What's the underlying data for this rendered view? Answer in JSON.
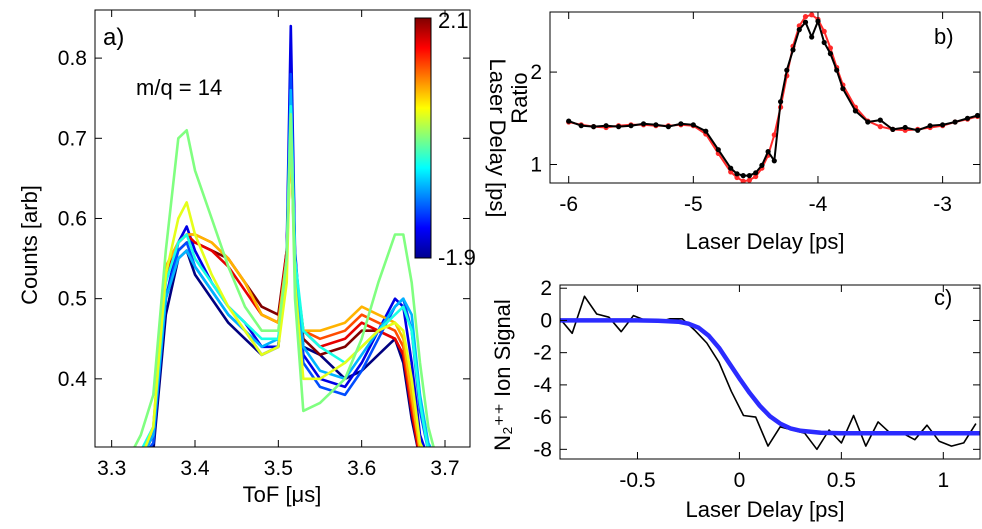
{
  "chart_data": [
    {
      "type": "line",
      "panel_label": "a)",
      "annotation": "m/q = 14",
      "xlabel": "ToF [μs]",
      "ylabel": "Counts [arb]",
      "xlim": [
        3.28,
        3.73
      ],
      "ylim": [
        0.315,
        0.86
      ],
      "xticks": [
        3.3,
        3.4,
        3.5,
        3.6,
        3.7
      ],
      "yticks": [
        0.4,
        0.5,
        0.6,
        0.7,
        0.8
      ],
      "xtick_labels": [
        "3.3",
        "3.4",
        "3.5",
        "3.6",
        "3.7"
      ],
      "ytick_labels": [
        "0.4",
        "0.5",
        "0.6",
        "0.7",
        "0.8"
      ],
      "grid": false,
      "colorbar": {
        "label": "Laser Delay [ps]",
        "min": -1.9,
        "max": 2.1,
        "min_label": "-1.9",
        "max_label": "2.1",
        "colormap": "jet"
      },
      "x": [
        3.32,
        3.335,
        3.35,
        3.365,
        3.38,
        3.39,
        3.4,
        3.42,
        3.44,
        3.46,
        3.48,
        3.5,
        3.51,
        3.515,
        3.52,
        3.53,
        3.55,
        3.58,
        3.6,
        3.62,
        3.64,
        3.65,
        3.66,
        3.67,
        3.68,
        3.69
      ],
      "series": [
        {
          "delay": -1.9,
          "values": [
            0.3,
            0.3,
            0.31,
            0.48,
            0.55,
            0.56,
            0.53,
            0.5,
            0.47,
            0.45,
            0.43,
            0.44,
            0.55,
            0.8,
            0.55,
            0.44,
            0.43,
            0.4,
            0.41,
            0.43,
            0.45,
            0.42,
            0.35,
            0.3,
            0.3,
            0.3
          ]
        },
        {
          "delay": -1.5,
          "values": [
            0.3,
            0.3,
            0.33,
            0.5,
            0.57,
            0.59,
            0.56,
            0.52,
            0.49,
            0.47,
            0.44,
            0.44,
            0.56,
            0.84,
            0.56,
            0.43,
            0.4,
            0.39,
            0.42,
            0.46,
            0.5,
            0.49,
            0.42,
            0.33,
            0.3,
            0.3
          ]
        },
        {
          "delay": -1.1,
          "values": [
            0.3,
            0.3,
            0.32,
            0.5,
            0.56,
            0.57,
            0.54,
            0.51,
            0.48,
            0.46,
            0.43,
            0.44,
            0.55,
            0.78,
            0.55,
            0.42,
            0.39,
            0.38,
            0.41,
            0.45,
            0.49,
            0.5,
            0.46,
            0.36,
            0.31,
            0.3
          ]
        },
        {
          "delay": -0.7,
          "values": [
            0.3,
            0.3,
            0.33,
            0.5,
            0.55,
            0.56,
            0.54,
            0.51,
            0.48,
            0.46,
            0.44,
            0.45,
            0.55,
            0.76,
            0.55,
            0.44,
            0.41,
            0.4,
            0.43,
            0.46,
            0.49,
            0.5,
            0.48,
            0.38,
            0.32,
            0.3
          ]
        },
        {
          "delay": -0.3,
          "values": [
            0.3,
            0.31,
            0.34,
            0.52,
            0.57,
            0.58,
            0.55,
            0.52,
            0.49,
            0.47,
            0.45,
            0.45,
            0.55,
            0.74,
            0.55,
            0.46,
            0.44,
            0.42,
            0.44,
            0.46,
            0.48,
            0.49,
            0.46,
            0.37,
            0.31,
            0.3
          ]
        },
        {
          "delay": 0.1,
          "values": [
            0.3,
            0.33,
            0.38,
            0.56,
            0.7,
            0.71,
            0.66,
            0.6,
            0.54,
            0.49,
            0.46,
            0.46,
            0.55,
            0.73,
            0.5,
            0.36,
            0.37,
            0.4,
            0.45,
            0.52,
            0.58,
            0.58,
            0.52,
            0.42,
            0.34,
            0.3
          ]
        },
        {
          "delay": 0.5,
          "values": [
            0.3,
            0.3,
            0.34,
            0.53,
            0.6,
            0.62,
            0.58,
            0.53,
            0.49,
            0.46,
            0.43,
            0.44,
            0.52,
            0.72,
            0.52,
            0.4,
            0.4,
            0.42,
            0.44,
            0.46,
            0.47,
            0.46,
            0.4,
            0.32,
            0.3,
            0.3
          ]
        },
        {
          "delay": 0.9,
          "values": [
            0.3,
            0.3,
            0.34,
            0.54,
            0.57,
            0.58,
            0.58,
            0.57,
            0.55,
            0.52,
            0.48,
            0.47,
            0.55,
            0.7,
            0.54,
            0.46,
            0.46,
            0.47,
            0.49,
            0.48,
            0.47,
            0.45,
            0.38,
            0.31,
            0.3,
            0.3
          ]
        },
        {
          "delay": 1.3,
          "values": [
            0.3,
            0.3,
            0.33,
            0.54,
            0.57,
            0.58,
            0.58,
            0.57,
            0.55,
            0.52,
            0.48,
            0.47,
            0.55,
            0.7,
            0.54,
            0.46,
            0.45,
            0.46,
            0.48,
            0.47,
            0.46,
            0.44,
            0.37,
            0.31,
            0.3,
            0.3
          ]
        },
        {
          "delay": 1.7,
          "values": [
            0.3,
            0.3,
            0.33,
            0.53,
            0.57,
            0.58,
            0.57,
            0.56,
            0.54,
            0.51,
            0.48,
            0.47,
            0.56,
            0.71,
            0.54,
            0.46,
            0.44,
            0.45,
            0.47,
            0.46,
            0.45,
            0.43,
            0.36,
            0.3,
            0.3,
            0.3
          ]
        },
        {
          "delay": 2.1,
          "values": [
            0.3,
            0.3,
            0.33,
            0.53,
            0.56,
            0.57,
            0.57,
            0.56,
            0.55,
            0.52,
            0.49,
            0.48,
            0.56,
            0.72,
            0.55,
            0.45,
            0.43,
            0.44,
            0.46,
            0.46,
            0.45,
            0.43,
            0.36,
            0.3,
            0.3,
            0.3
          ]
        }
      ]
    },
    {
      "type": "line",
      "panel_label": "b)",
      "xlabel": "Laser Delay [ps]",
      "ylabel": "Ratio",
      "xlim": [
        -6.15,
        -2.7
      ],
      "ylim": [
        0.8,
        2.65
      ],
      "xticks": [
        -6,
        -5,
        -4,
        -3
      ],
      "yticks": [
        1,
        2
      ],
      "xtick_labels": [
        "-6",
        "-5",
        "-4",
        "-3"
      ],
      "ytick_labels": [
        "1",
        "2"
      ],
      "grid": false,
      "series": [
        {
          "color": "#ff2a2a",
          "x": [
            -6.0,
            -5.9,
            -5.8,
            -5.7,
            -5.6,
            -5.5,
            -5.4,
            -5.3,
            -5.2,
            -5.1,
            -5.0,
            -4.9,
            -4.8,
            -4.7,
            -4.65,
            -4.6,
            -4.55,
            -4.5,
            -4.45,
            -4.4,
            -4.35,
            -4.3,
            -4.25,
            -4.2,
            -4.15,
            -4.1,
            -4.05,
            -4.0,
            -3.95,
            -3.9,
            -3.85,
            -3.8,
            -3.7,
            -3.6,
            -3.5,
            -3.4,
            -3.3,
            -3.2,
            -3.1,
            -3.0,
            -2.9,
            -2.8,
            -2.72
          ],
          "y": [
            1.46,
            1.43,
            1.41,
            1.4,
            1.42,
            1.43,
            1.43,
            1.42,
            1.42,
            1.43,
            1.42,
            1.33,
            1.12,
            0.92,
            0.86,
            0.82,
            0.83,
            0.87,
            0.96,
            1.1,
            1.32,
            1.62,
            1.96,
            2.28,
            2.5,
            2.6,
            2.62,
            2.57,
            2.44,
            2.26,
            2.05,
            1.86,
            1.62,
            1.47,
            1.41,
            1.38,
            1.37,
            1.38,
            1.4,
            1.42,
            1.46,
            1.49,
            1.52
          ]
        },
        {
          "color": "#000000",
          "x": [
            -6.0,
            -5.9,
            -5.8,
            -5.7,
            -5.6,
            -5.5,
            -5.4,
            -5.3,
            -5.2,
            -5.1,
            -5.0,
            -4.9,
            -4.8,
            -4.7,
            -4.65,
            -4.6,
            -4.55,
            -4.5,
            -4.45,
            -4.4,
            -4.35,
            -4.3,
            -4.25,
            -4.2,
            -4.15,
            -4.1,
            -4.05,
            -4.0,
            -3.95,
            -3.9,
            -3.85,
            -3.8,
            -3.7,
            -3.6,
            -3.5,
            -3.4,
            -3.3,
            -3.2,
            -3.1,
            -3.0,
            -2.9,
            -2.8,
            -2.72
          ],
          "y": [
            1.47,
            1.42,
            1.41,
            1.42,
            1.41,
            1.42,
            1.44,
            1.43,
            1.41,
            1.44,
            1.43,
            1.36,
            1.16,
            0.96,
            0.9,
            0.88,
            0.88,
            0.91,
            0.99,
            1.14,
            1.04,
            1.68,
            2.02,
            2.24,
            2.46,
            2.54,
            2.38,
            2.55,
            2.32,
            2.2,
            2.02,
            1.82,
            1.58,
            1.46,
            1.48,
            1.38,
            1.4,
            1.37,
            1.42,
            1.43,
            1.46,
            1.5,
            1.53
          ]
        }
      ]
    },
    {
      "type": "line",
      "panel_label": "c)",
      "xlabel": "Laser Delay [ps]",
      "ylabel": "N₂⁺⁺ Ion Signal",
      "xlim": [
        -0.88,
        1.18
      ],
      "ylim": [
        -8.6,
        2.2
      ],
      "xticks": [
        -0.5,
        0,
        0.5,
        1
      ],
      "yticks": [
        -8,
        -6,
        -4,
        -2,
        0,
        2
      ],
      "xtick_labels": [
        "-0.5",
        "0",
        "0.5",
        "1"
      ],
      "ytick_labels": [
        "-8",
        "-6",
        "-4",
        "-2",
        "0",
        "2"
      ],
      "grid": false,
      "series": [
        {
          "color": "#000000",
          "x": [
            -0.88,
            -0.82,
            -0.76,
            -0.7,
            -0.64,
            -0.58,
            -0.52,
            -0.46,
            -0.4,
            -0.34,
            -0.28,
            -0.22,
            -0.16,
            -0.1,
            -0.04,
            0.02,
            0.08,
            0.14,
            0.2,
            0.26,
            0.32,
            0.38,
            0.44,
            0.5,
            0.56,
            0.62,
            0.68,
            0.74,
            0.8,
            0.86,
            0.92,
            0.98,
            1.04,
            1.1,
            1.16
          ],
          "y": [
            0.1,
            -0.8,
            1.5,
            0.4,
            0.2,
            -0.7,
            0.3,
            0.0,
            -0.1,
            0.1,
            0.1,
            -0.6,
            -1.4,
            -2.6,
            -4.4,
            -5.9,
            -6.0,
            -7.8,
            -6.6,
            -6.8,
            -7.0,
            -8.0,
            -6.8,
            -7.6,
            -5.9,
            -7.8,
            -6.3,
            -7.0,
            -7.0,
            -7.4,
            -6.5,
            -7.5,
            -7.8,
            -7.6,
            -6.4
          ]
        },
        {
          "color": "#2b2bff",
          "x": [
            -0.88,
            -0.8,
            -0.7,
            -0.6,
            -0.5,
            -0.4,
            -0.3,
            -0.25,
            -0.2,
            -0.15,
            -0.1,
            -0.05,
            0.0,
            0.05,
            0.1,
            0.15,
            0.2,
            0.25,
            0.3,
            0.4,
            0.5,
            0.6,
            0.8,
            1.0,
            1.18
          ],
          "y": [
            0.0,
            0.0,
            0.0,
            0.0,
            0.0,
            -0.02,
            -0.08,
            -0.2,
            -0.45,
            -0.95,
            -1.7,
            -2.65,
            -3.6,
            -4.5,
            -5.3,
            -5.95,
            -6.4,
            -6.7,
            -6.85,
            -6.97,
            -7.0,
            -7.0,
            -7.0,
            -7.0,
            -7.0
          ]
        }
      ]
    }
  ]
}
